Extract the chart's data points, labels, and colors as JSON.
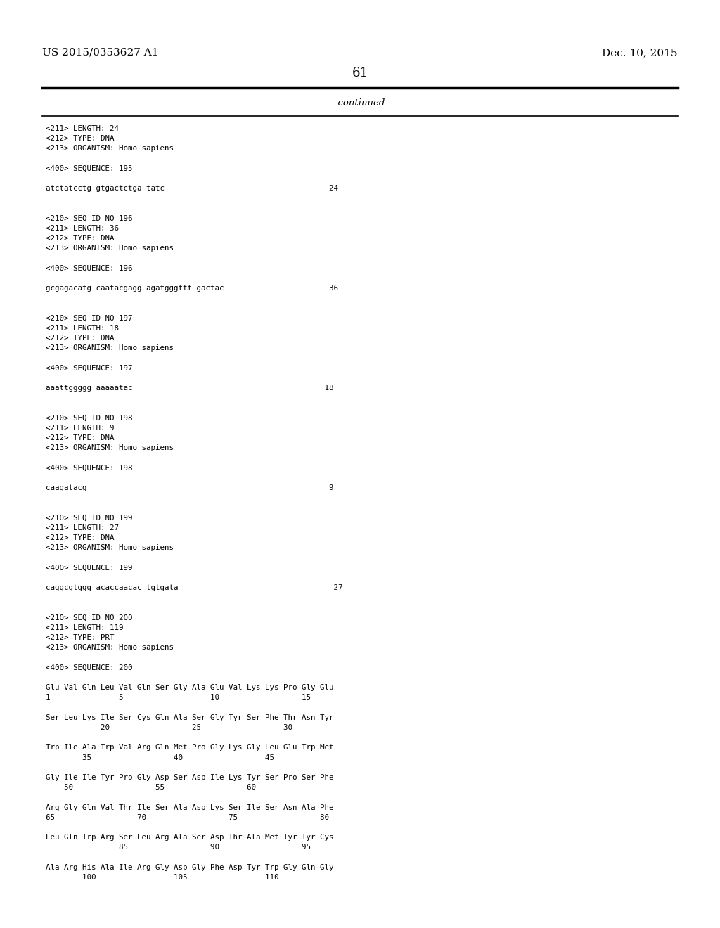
{
  "header_left": "US 2015/0353627 A1",
  "header_right": "Dec. 10, 2015",
  "page_number": "61",
  "continued_text": "-continued",
  "background_color": "#ffffff",
  "text_color": "#000000",
  "content_lines": [
    "<211> LENGTH: 24",
    "<212> TYPE: DNA",
    "<213> ORGANISM: Homo sapiens",
    "",
    "<400> SEQUENCE: 195",
    "",
    "atctatcctg gtgactctga tatc                                    24",
    "",
    "",
    "<210> SEQ ID NO 196",
    "<211> LENGTH: 36",
    "<212> TYPE: DNA",
    "<213> ORGANISM: Homo sapiens",
    "",
    "<400> SEQUENCE: 196",
    "",
    "gcgagacatg caatacgagg agatgggttt gactac                       36",
    "",
    "",
    "<210> SEQ ID NO 197",
    "<211> LENGTH: 18",
    "<212> TYPE: DNA",
    "<213> ORGANISM: Homo sapiens",
    "",
    "<400> SEQUENCE: 197",
    "",
    "aaattggggg aaaaatac                                          18",
    "",
    "",
    "<210> SEQ ID NO 198",
    "<211> LENGTH: 9",
    "<212> TYPE: DNA",
    "<213> ORGANISM: Homo sapiens",
    "",
    "<400> SEQUENCE: 198",
    "",
    "caagatacg                                                     9",
    "",
    "",
    "<210> SEQ ID NO 199",
    "<211> LENGTH: 27",
    "<212> TYPE: DNA",
    "<213> ORGANISM: Homo sapiens",
    "",
    "<400> SEQUENCE: 199",
    "",
    "caggcgtggg acaccaacac tgtgata                                  27",
    "",
    "",
    "<210> SEQ ID NO 200",
    "<211> LENGTH: 119",
    "<212> TYPE: PRT",
    "<213> ORGANISM: Homo sapiens",
    "",
    "<400> SEQUENCE: 200",
    "",
    "Glu Val Gln Leu Val Gln Ser Gly Ala Glu Val Lys Lys Pro Gly Glu",
    "1               5                   10                  15",
    "",
    "Ser Leu Lys Ile Ser Cys Gln Ala Ser Gly Tyr Ser Phe Thr Asn Tyr",
    "            20                  25                  30",
    "",
    "Trp Ile Ala Trp Val Arg Gln Met Pro Gly Lys Gly Leu Glu Trp Met",
    "        35                  40                  45",
    "",
    "Gly Ile Ile Tyr Pro Gly Asp Ser Asp Ile Lys Tyr Ser Pro Ser Phe",
    "    50                  55                  60",
    "",
    "Arg Gly Gln Val Thr Ile Ser Ala Asp Lys Ser Ile Ser Asn Ala Phe",
    "65                  70                  75                  80",
    "",
    "Leu Gln Trp Arg Ser Leu Arg Ala Ser Asp Thr Ala Met Tyr Tyr Cys",
    "                85                  90                  95",
    "",
    "Ala Arg His Ala Ile Arg Gly Asp Gly Phe Asp Tyr Trp Gly Gln Gly",
    "        100                 105                 110"
  ]
}
